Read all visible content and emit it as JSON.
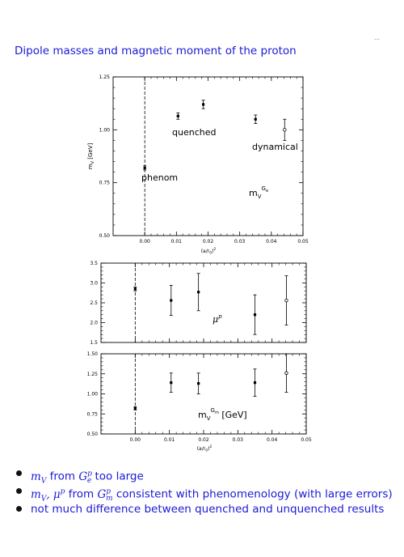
{
  "slide": {
    "corner_mark": "~~",
    "title": "Dipole masses and magnetic moment of the proton"
  },
  "chart_data": [
    {
      "type": "scatter",
      "title": "",
      "xlabel": "(a/r0)²",
      "ylabel": "mV [GeV]",
      "xlim": [
        -0.01,
        0.05
      ],
      "ylim": [
        0.5,
        1.25
      ],
      "x_ticks": [
        "0.00",
        "0.01",
        "0.02",
        "0.03",
        "0.04",
        "0.05"
      ],
      "y_ticks": [
        "0.50",
        "0.75",
        "1.00",
        "1.25"
      ],
      "grid": false,
      "annotations": [
        "quenched",
        "dynamical",
        "phenom",
        "mV Ge"
      ],
      "series": [
        {
          "name": "phenom",
          "marker": "filled",
          "points": [
            {
              "x": 0.0,
              "y": 0.82,
              "err": 0.01
            }
          ]
        },
        {
          "name": "quenched",
          "marker": "filled",
          "points": [
            {
              "x": 0.0105,
              "y": 1.065,
              "err": 0.015
            },
            {
              "x": 0.0185,
              "y": 1.12,
              "err": 0.02
            },
            {
              "x": 0.035,
              "y": 1.05,
              "err": 0.02
            }
          ]
        },
        {
          "name": "dynamical",
          "marker": "open",
          "points": [
            {
              "x": 0.0442,
              "y": 1.0,
              "err": 0.05
            }
          ]
        }
      ]
    },
    {
      "type": "scatter",
      "title": "",
      "xlabel": "",
      "ylabel": "",
      "xlim": [
        -0.01,
        0.05
      ],
      "ylim": [
        1.5,
        3.5
      ],
      "x_ticks": [],
      "y_ticks": [
        "1.5",
        "2.0",
        "2.5",
        "3.0",
        "3.5"
      ],
      "grid": false,
      "annotations": [
        "μp"
      ],
      "series": [
        {
          "name": "phenom",
          "marker": "filled",
          "points": [
            {
              "x": 0.0,
              "y": 2.85,
              "err": 0.05
            }
          ]
        },
        {
          "name": "quenched",
          "marker": "filled",
          "points": [
            {
              "x": 0.0105,
              "y": 2.56,
              "err": 0.38
            },
            {
              "x": 0.0185,
              "y": 2.77,
              "err": 0.47
            },
            {
              "x": 0.035,
              "y": 2.2,
              "err": 0.5
            }
          ]
        },
        {
          "name": "dynamical",
          "marker": "open",
          "points": [
            {
              "x": 0.0442,
              "y": 2.56,
              "err": 0.62
            }
          ]
        }
      ]
    },
    {
      "type": "scatter",
      "title": "",
      "xlabel": "(a/r0)²",
      "ylabel": "",
      "xlim": [
        -0.01,
        0.05
      ],
      "ylim": [
        0.5,
        1.5
      ],
      "x_ticks": [
        "0.00",
        "0.01",
        "0.02",
        "0.03",
        "0.04",
        "0.05"
      ],
      "y_ticks": [
        "0.50",
        "0.75",
        "1.00",
        "1.25",
        "1.50"
      ],
      "grid": false,
      "annotations": [
        "mV Gm [GeV]"
      ],
      "series": [
        {
          "name": "phenom",
          "marker": "filled",
          "points": [
            {
              "x": 0.0,
              "y": 0.82,
              "err": 0.02
            }
          ]
        },
        {
          "name": "quenched",
          "marker": "filled",
          "points": [
            {
              "x": 0.0105,
              "y": 1.14,
              "err": 0.12
            },
            {
              "x": 0.0185,
              "y": 1.13,
              "err": 0.13
            },
            {
              "x": 0.035,
              "y": 1.14,
              "err": 0.17
            }
          ]
        },
        {
          "name": "dynamical",
          "marker": "open",
          "points": [
            {
              "x": 0.0442,
              "y": 1.26,
              "err": 0.24
            }
          ]
        }
      ]
    }
  ],
  "bullets": [
    {
      "pre": "",
      "math1": "mV",
      "mid": " from ",
      "math2": "Gep",
      "post": " too large"
    },
    {
      "pre": "",
      "math1": "mV, μp",
      "mid": " from ",
      "math2": "Gmp",
      "post": " consistent with phenomenology (with large errors)"
    },
    {
      "pre": "not much difference between quenched and unquenched results",
      "math1": "",
      "mid": "",
      "math2": "",
      "post": ""
    }
  ]
}
